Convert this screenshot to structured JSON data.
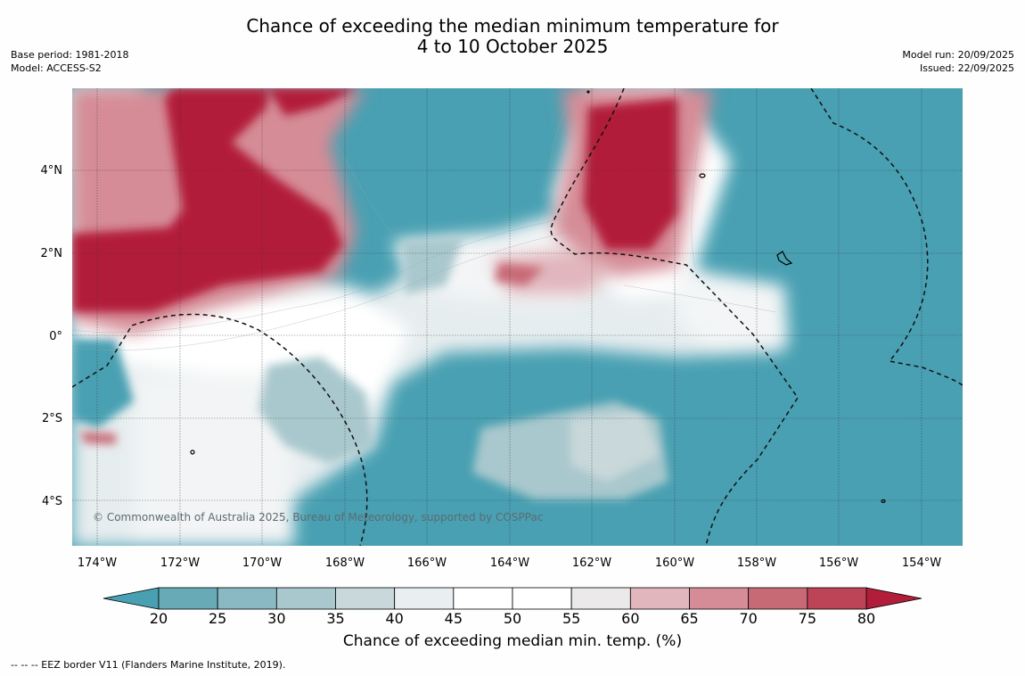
{
  "title_line1": "Chance of exceeding the median minimum temperature for",
  "title_line2": "4 to 10 October 2025",
  "meta_left": {
    "base_period": "Base period: 1981-2018",
    "model": "Model: ACCESS-S2"
  },
  "meta_right": {
    "model_run": "Model run: 20/09/2025",
    "issued": "Issued: 22/09/2025"
  },
  "copyright": "© Commonwealth of Australia 2025, Bureau of Meteorology, supported by COSPPac",
  "lat_labels": [
    "4°N",
    "2°N",
    "0°",
    "2°S",
    "4°S"
  ],
  "lon_labels": [
    "174°W",
    "172°W",
    "170°W",
    "168°W",
    "166°W",
    "164°W",
    "162°W",
    "160°W",
    "158°W",
    "156°W",
    "154°W"
  ],
  "colorbar": {
    "ticks": [
      "20",
      "25",
      "30",
      "35",
      "40",
      "45",
      "50",
      "55",
      "60",
      "65",
      "70",
      "75",
      "80"
    ],
    "colors": [
      "#68abb7",
      "#8ab9c3",
      "#a9c8cd",
      "#c9d8da",
      "#e9eef0",
      "#ffffff",
      "#ffffff",
      "#ece9ea",
      "#e1b6bc",
      "#d58c96",
      "#c86a76",
      "#bc4456"
    ],
    "below_color": "#48a0b2",
    "above_color": "#b21e3a",
    "label": "Chance of exceeding median min. temp. (%)"
  },
  "footnote": "--  --  -- EEZ border V11 (Flanders Marine Institute, 2019)."
}
